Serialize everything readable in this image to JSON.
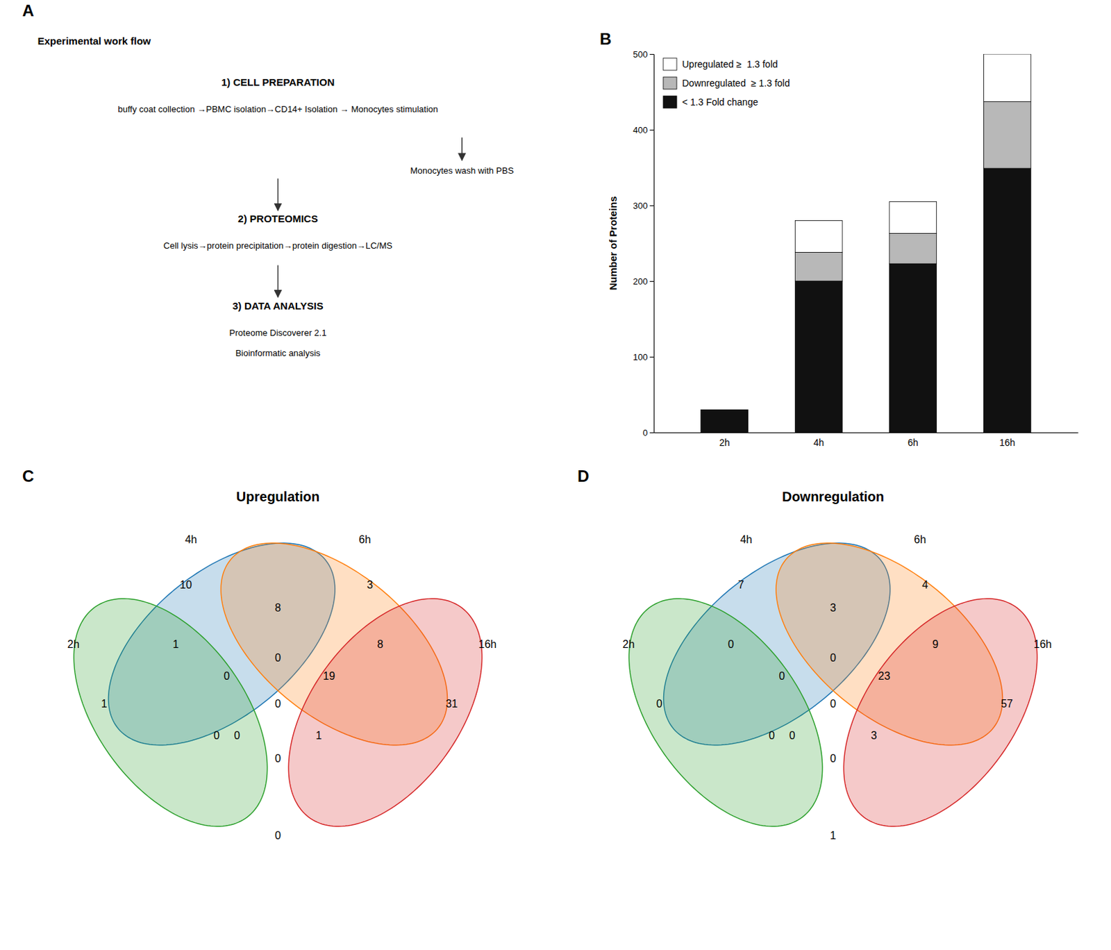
{
  "chart_data": [
    {
      "type": "text",
      "title": "Experimental work flow",
      "annotations": [
        "A",
        "1) CELL PREPARATION",
        "buffy coat collection →PBMC isolation→CD14+ Isolation → Monocytes stimulation",
        "Monocytes wash with PBS",
        "2) PROTEOMICS",
        "Cell lysis→protein precipitation→protein digestion→LC/MS",
        "3) DATA ANALYSIS",
        "Proteome Discoverer 2.1",
        "Bioinformatic analysis"
      ]
    },
    {
      "type": "bar",
      "stacked": true,
      "annotations": [
        "B"
      ],
      "categories": [
        "2h",
        "4h",
        "6h",
        "16h"
      ],
      "series": [
        {
          "name": "< 1.3 Fold change",
          "color": "#111111",
          "values": [
            30,
            200,
            223,
            349
          ]
        },
        {
          "name": "Downregulated  ≥ 1.3 fold",
          "color": "#b8b8b8",
          "values": [
            0,
            38,
            40,
            88
          ]
        },
        {
          "name": "Upregulated ≥  1.3 fold",
          "color": "#ffffff",
          "values": [
            0,
            42,
            42,
            63
          ]
        }
      ],
      "ylabel": "Number of Proteins",
      "ylim": [
        0,
        500
      ],
      "yticks": [
        0,
        100,
        200,
        300,
        400,
        500
      ],
      "legend": "upper left",
      "grid": false
    },
    {
      "type": "venn",
      "title": "Upregulation",
      "annotations": [
        "C",
        "4h",
        "6h",
        "2h",
        "16h"
      ],
      "categories": [
        null,
        null,
        null,
        null,
        null,
        null,
        null,
        null,
        null,
        null,
        null,
        null,
        null,
        null,
        null,
        null
      ],
      "values": [
        10,
        3,
        8,
        1,
        8,
        1,
        31,
        19,
        0,
        0,
        0,
        0,
        1,
        0,
        0,
        0
      ],
      "data_labels": true
    },
    {
      "type": "venn",
      "title": "Downregulation",
      "annotations": [
        "D",
        "4h",
        "6h",
        "2h",
        "16h"
      ],
      "categories": [
        null,
        null,
        null,
        null,
        null,
        null,
        null,
        null,
        null,
        null,
        null,
        null,
        null,
        null,
        null,
        null
      ],
      "values": [
        7,
        4,
        3,
        0,
        9,
        0,
        57,
        23,
        0,
        0,
        0,
        0,
        3,
        0,
        0,
        1
      ],
      "data_labels": true
    }
  ]
}
